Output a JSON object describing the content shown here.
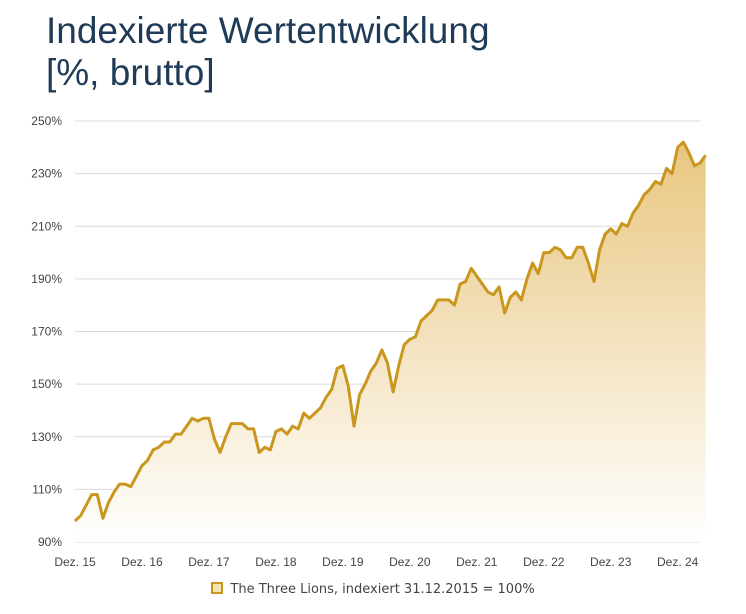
{
  "title_line1": "Indexierte Wertentwicklung",
  "title_line2": "[%, brutto]",
  "colors": {
    "line": "#c9961e",
    "fill_top": "#e8c680",
    "fill_bottom": "#ffffff",
    "grid": "#d9d9d9",
    "title": "#1f3b57",
    "axis_text": "#444444"
  },
  "chart_data": {
    "type": "area",
    "x_ticks": [
      "Dez. 15",
      "Dez. 16",
      "Dez. 17",
      "Dez. 18",
      "Dez. 19",
      "Dez. 20",
      "Dez. 21",
      "Dez. 22",
      "Dez. 23",
      "Dez. 24"
    ],
    "y_ticks": [
      "90%",
      "110%",
      "130%",
      "150%",
      "170%",
      "190%",
      "210%",
      "230%",
      "250%"
    ],
    "ylim": [
      90,
      250
    ],
    "xlim": [
      0,
      112
    ],
    "legend_position": "bottom",
    "grid": "horizontal",
    "series": [
      {
        "name": "The Three Lions, indexiert 31.12.2015 = 100%",
        "values": [
          98,
          100,
          104,
          108,
          108,
          99,
          105,
          109,
          112,
          112,
          111,
          115,
          119,
          121,
          125,
          126,
          128,
          128,
          131,
          131,
          134,
          137,
          136,
          137,
          137,
          129,
          124,
          130,
          135,
          135,
          135,
          133,
          133,
          124,
          126,
          125,
          132,
          133,
          131,
          134,
          133,
          139,
          137,
          139,
          141,
          145,
          148,
          156,
          157,
          149,
          134,
          146,
          150,
          155,
          158,
          163,
          158,
          147,
          157,
          165,
          167,
          168,
          174,
          176,
          178,
          182,
          182,
          182,
          180,
          188,
          189,
          194,
          191,
          188,
          185,
          184,
          187,
          177,
          183,
          185,
          182,
          190,
          196,
          192,
          200,
          200,
          202,
          201,
          198,
          198,
          202,
          202,
          196,
          189,
          201,
          207,
          209,
          207,
          211,
          210,
          215,
          218,
          222,
          224,
          227,
          226,
          232,
          230,
          240,
          242,
          238,
          233,
          234,
          237
        ]
      }
    ]
  }
}
